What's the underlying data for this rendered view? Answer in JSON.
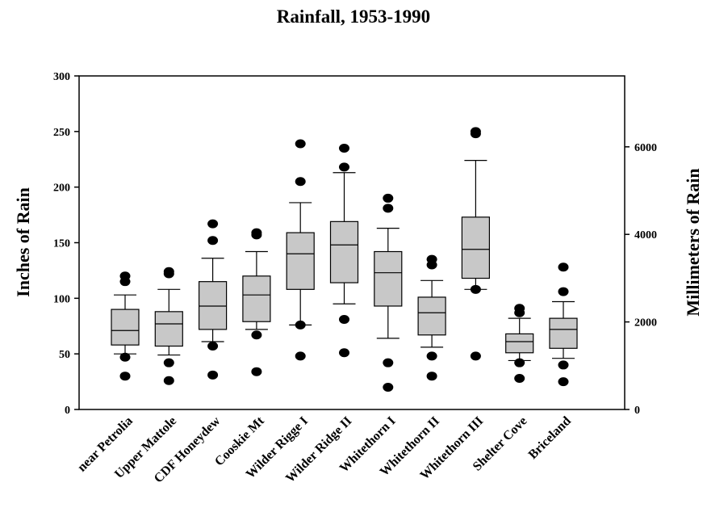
{
  "chart_data": {
    "type": "box",
    "title": "Rainfall, 1953-1990",
    "ylabel": "Inches of Rain",
    "y2label": "Millimeters of Rain",
    "ylim": [
      0,
      300
    ],
    "yticks": [
      0,
      50,
      100,
      150,
      200,
      250,
      300
    ],
    "y2ticks_mm": [
      0,
      2000,
      4000,
      6000
    ],
    "categories": [
      "near Petrolia",
      "Upper Mattole",
      "CDF Honeydew",
      "Cooskie Mt",
      "Wilder Rigge I",
      "Wilder Ridge II",
      "Whitethorn I",
      "Whitethorn II",
      "Whitethorn III",
      "Shelter Cove",
      "Briceland"
    ],
    "boxes": [
      {
        "whisker_low": 50,
        "q1": 58,
        "median": 71,
        "q3": 90,
        "whisker_high": 103,
        "outliers": [
          30,
          47,
          115,
          120
        ]
      },
      {
        "whisker_low": 49,
        "q1": 57,
        "median": 77,
        "q3": 88,
        "whisker_high": 108,
        "outliers": [
          26,
          42,
          122,
          124
        ]
      },
      {
        "whisker_low": 61,
        "q1": 72,
        "median": 93,
        "q3": 115,
        "whisker_high": 136,
        "outliers": [
          31,
          57,
          152,
          167
        ]
      },
      {
        "whisker_low": 72,
        "q1": 79,
        "median": 103,
        "q3": 120,
        "whisker_high": 142,
        "outliers": [
          34,
          67,
          157,
          159
        ]
      },
      {
        "whisker_low": 76,
        "q1": 108,
        "median": 140,
        "q3": 159,
        "whisker_high": 186,
        "outliers": [
          48,
          76,
          205,
          239
        ]
      },
      {
        "whisker_low": 95,
        "q1": 114,
        "median": 148,
        "q3": 169,
        "whisker_high": 213,
        "outliers": [
          51,
          81,
          218,
          235
        ]
      },
      {
        "whisker_low": 64,
        "q1": 93,
        "median": 123,
        "q3": 142,
        "whisker_high": 163,
        "outliers": [
          20,
          42,
          181,
          190
        ]
      },
      {
        "whisker_low": 56,
        "q1": 67,
        "median": 87,
        "q3": 101,
        "whisker_high": 116,
        "outliers": [
          30,
          48,
          130,
          135
        ]
      },
      {
        "whisker_low": 108,
        "q1": 118,
        "median": 144,
        "q3": 173,
        "whisker_high": 224,
        "outliers": [
          48,
          108,
          248,
          250
        ]
      },
      {
        "whisker_low": 44,
        "q1": 51,
        "median": 61,
        "q3": 68,
        "whisker_high": 82,
        "outliers": [
          28,
          42,
          87,
          91
        ]
      },
      {
        "whisker_low": 46,
        "q1": 55,
        "median": 72,
        "q3": 82,
        "whisker_high": 97,
        "outliers": [
          25,
          40,
          106,
          128
        ]
      }
    ],
    "box_color": "#c8c8c8",
    "grid": false
  }
}
